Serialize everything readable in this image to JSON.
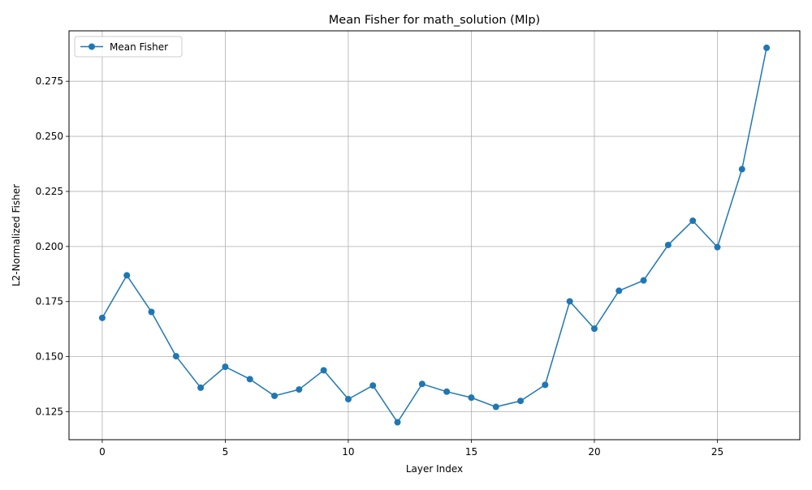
{
  "chart_data": {
    "type": "line",
    "title": "Mean Fisher for math_solution (Mlp)",
    "xlabel": "Layer Index",
    "ylabel": "L2-Normalized Fisher",
    "xlim": [
      -1.35,
      28.35
    ],
    "ylim": [
      0.1123,
      0.2979
    ],
    "x_ticks": [
      0,
      5,
      10,
      15,
      20,
      25
    ],
    "y_ticks": [
      0.125,
      0.15,
      0.175,
      0.2,
      0.225,
      0.25,
      0.275
    ],
    "y_tick_labels": [
      "0.125",
      "0.150",
      "0.175",
      "0.200",
      "0.225",
      "0.250",
      "0.275"
    ],
    "grid": true,
    "legend_position": "upper-left",
    "series": [
      {
        "name": "Mean Fisher",
        "color": "#1f77b4",
        "marker": "circle",
        "x": [
          0,
          1,
          2,
          3,
          4,
          5,
          6,
          7,
          8,
          9,
          10,
          11,
          12,
          13,
          14,
          15,
          16,
          17,
          18,
          19,
          20,
          21,
          22,
          23,
          24,
          25,
          26,
          27
        ],
        "y": [
          0.1676,
          0.1869,
          0.1703,
          0.1502,
          0.1359,
          0.1454,
          0.1398,
          0.1322,
          0.1351,
          0.1438,
          0.1307,
          0.1369,
          0.1202,
          0.1376,
          0.1341,
          0.1314,
          0.1272,
          0.1299,
          0.1372,
          0.1751,
          0.1627,
          0.1799,
          0.1846,
          0.2007,
          0.2117,
          0.1997,
          0.2351,
          0.2902
        ]
      }
    ]
  }
}
